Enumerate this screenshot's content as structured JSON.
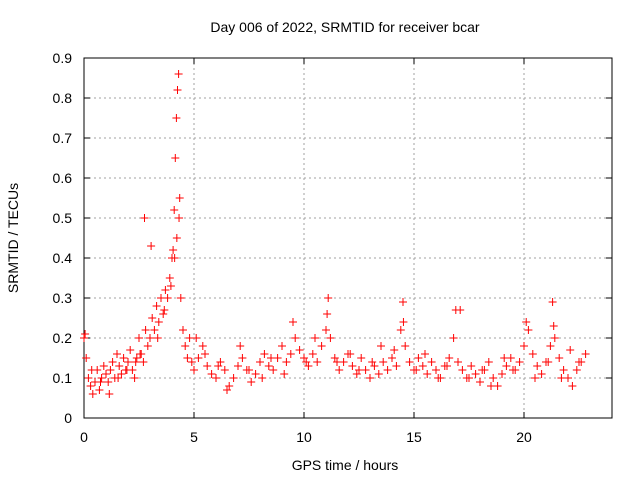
{
  "chart_data": {
    "type": "scatter",
    "title": "Day 006 of 2022, SRMTID for receiver bcar",
    "xlabel": "GPS time / hours",
    "ylabel": "SRMTID / TECUs",
    "xlim": [
      0,
      24
    ],
    "ylim": [
      0,
      0.9
    ],
    "xticks": [
      "0",
      "5",
      "10",
      "15",
      "20"
    ],
    "yticks": [
      "0",
      "0.1",
      "0.2",
      "0.3",
      "0.4",
      "0.5",
      "0.6",
      "0.7",
      "0.8",
      "0.9"
    ],
    "grid": true,
    "marker": "+",
    "color": "#ff0000",
    "series": [
      {
        "name": "SRMTID",
        "x": [
          0.0,
          0.1,
          0.2,
          0.3,
          0.4,
          0.5,
          0.6,
          0.7,
          0.8,
          0.9,
          1.0,
          1.1,
          1.2,
          1.3,
          1.4,
          1.5,
          1.6,
          1.7,
          1.8,
          1.9,
          2.0,
          2.1,
          2.2,
          2.3,
          2.4,
          2.5,
          2.6,
          2.7,
          2.8,
          2.9,
          3.0,
          3.1,
          3.2,
          3.3,
          3.4,
          3.5,
          3.6,
          3.7,
          3.8,
          3.9,
          4.0,
          4.05,
          4.1,
          4.15,
          4.2,
          4.25,
          4.3,
          4.35,
          4.4,
          4.5,
          4.6,
          4.7,
          4.8,
          4.9,
          5.0,
          5.2,
          5.4,
          5.6,
          5.8,
          6.0,
          6.2,
          6.4,
          6.6,
          6.8,
          7.0,
          7.2,
          7.4,
          7.6,
          7.8,
          8.0,
          8.2,
          8.4,
          8.6,
          8.8,
          9.0,
          9.2,
          9.4,
          9.6,
          9.8,
          10.0,
          10.2,
          10.4,
          10.6,
          10.8,
          11.0,
          11.1,
          11.2,
          11.4,
          11.6,
          11.8,
          12.0,
          12.2,
          12.4,
          12.6,
          12.8,
          13.0,
          13.2,
          13.4,
          13.6,
          13.8,
          14.0,
          14.2,
          14.4,
          14.5,
          14.6,
          14.8,
          15.0,
          15.2,
          15.4,
          15.6,
          15.8,
          16.0,
          16.2,
          16.4,
          16.6,
          16.8,
          16.9,
          17.0,
          17.2,
          17.4,
          17.6,
          17.8,
          18.0,
          18.2,
          18.4,
          18.6,
          18.8,
          19.0,
          19.2,
          19.4,
          19.6,
          19.8,
          20.0,
          20.2,
          20.4,
          20.6,
          20.8,
          21.0,
          21.2,
          21.3,
          21.4,
          21.6,
          21.8,
          22.0,
          22.2,
          22.4,
          22.6,
          22.8,
          0.05,
          0.35,
          0.75,
          1.15,
          1.55,
          1.95,
          2.35,
          2.55,
          2.75,
          3.05,
          3.35,
          3.65,
          3.95,
          4.12,
          4.22,
          4.32,
          5.1,
          5.5,
          6.1,
          6.5,
          7.1,
          7.5,
          8.1,
          8.5,
          9.1,
          9.5,
          10.1,
          10.5,
          11.05,
          11.5,
          12.1,
          12.5,
          13.1,
          13.5,
          14.1,
          14.52,
          15.1,
          15.5,
          16.1,
          16.5,
          17.1,
          17.5,
          18.1,
          18.5,
          19.1,
          19.5,
          20.1,
          20.5,
          21.1,
          21.35,
          21.7,
          22.1,
          22.5
        ],
        "y": [
          0.2,
          0.15,
          0.1,
          0.08,
          0.06,
          0.09,
          0.12,
          0.07,
          0.1,
          0.13,
          0.11,
          0.09,
          0.12,
          0.14,
          0.1,
          0.16,
          0.13,
          0.11,
          0.15,
          0.12,
          0.14,
          0.17,
          0.12,
          0.1,
          0.15,
          0.2,
          0.16,
          0.14,
          0.22,
          0.18,
          0.2,
          0.25,
          0.22,
          0.28,
          0.24,
          0.3,
          0.26,
          0.32,
          0.3,
          0.35,
          0.4,
          0.42,
          0.52,
          0.65,
          0.75,
          0.82,
          0.86,
          0.55,
          0.3,
          0.22,
          0.18,
          0.15,
          0.2,
          0.14,
          0.12,
          0.15,
          0.18,
          0.13,
          0.11,
          0.1,
          0.14,
          0.12,
          0.08,
          0.1,
          0.13,
          0.15,
          0.12,
          0.09,
          0.11,
          0.14,
          0.16,
          0.13,
          0.12,
          0.15,
          0.18,
          0.14,
          0.16,
          0.2,
          0.17,
          0.15,
          0.13,
          0.16,
          0.14,
          0.18,
          0.22,
          0.3,
          0.2,
          0.15,
          0.12,
          0.14,
          0.16,
          0.13,
          0.11,
          0.15,
          0.12,
          0.1,
          0.13,
          0.11,
          0.14,
          0.12,
          0.15,
          0.13,
          0.22,
          0.29,
          0.18,
          0.14,
          0.12,
          0.15,
          0.13,
          0.11,
          0.14,
          0.12,
          0.1,
          0.13,
          0.15,
          0.2,
          0.27,
          0.14,
          0.12,
          0.1,
          0.13,
          0.11,
          0.09,
          0.12,
          0.14,
          0.1,
          0.08,
          0.11,
          0.13,
          0.15,
          0.12,
          0.14,
          0.18,
          0.22,
          0.16,
          0.13,
          0.11,
          0.14,
          0.18,
          0.29,
          0.2,
          0.15,
          0.12,
          0.1,
          0.08,
          0.12,
          0.14,
          0.16,
          0.21,
          0.12,
          0.09,
          0.06,
          0.1,
          0.12,
          0.14,
          0.16,
          0.5,
          0.43,
          0.2,
          0.27,
          0.33,
          0.4,
          0.45,
          0.5,
          0.2,
          0.16,
          0.13,
          0.07,
          0.18,
          0.12,
          0.1,
          0.15,
          0.11,
          0.24,
          0.14,
          0.2,
          0.26,
          0.14,
          0.16,
          0.12,
          0.14,
          0.18,
          0.17,
          0.24,
          0.12,
          0.16,
          0.1,
          0.13,
          0.27,
          0.1,
          0.12,
          0.08,
          0.15,
          0.12,
          0.24,
          0.1,
          0.14,
          0.23,
          0.1,
          0.17,
          0.14
        ]
      }
    ]
  }
}
